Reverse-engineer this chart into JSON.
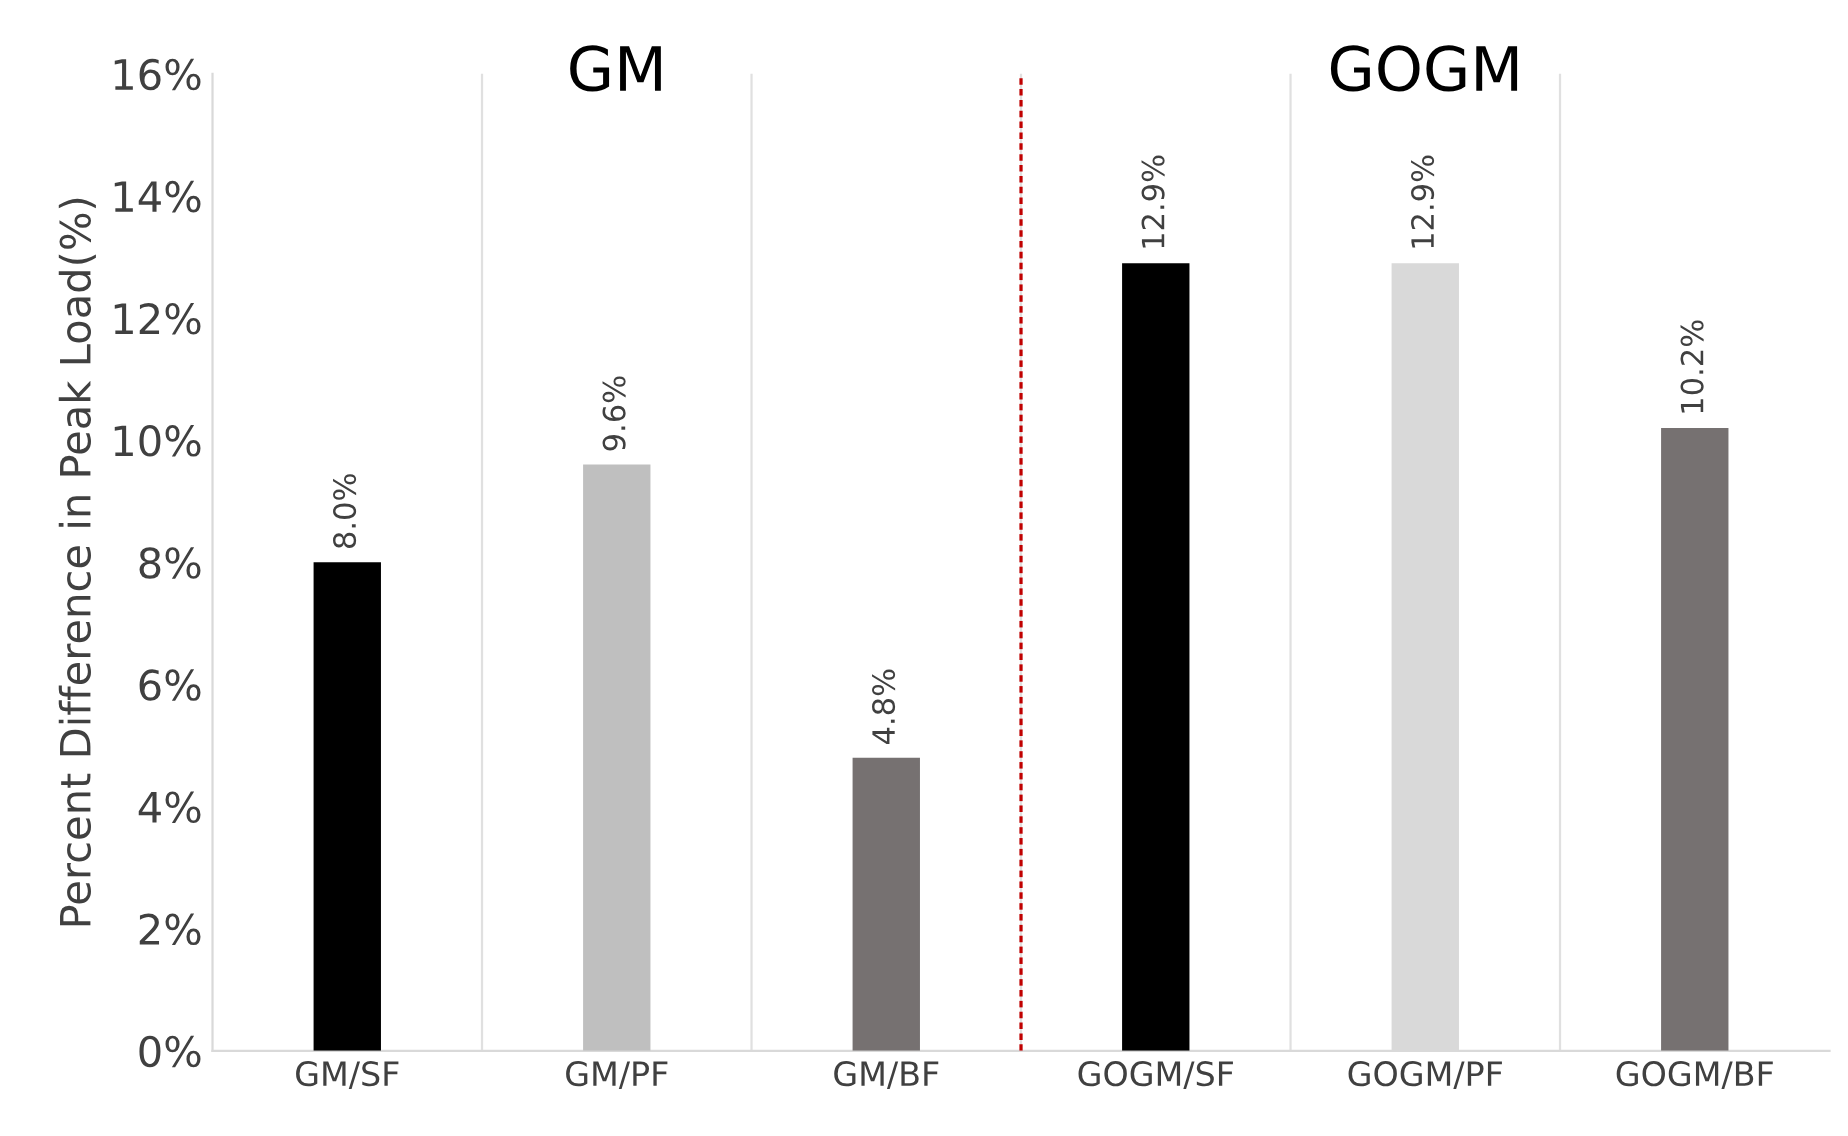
{
  "chart_data": {
    "type": "bar",
    "ylabel": "Percent Difference in Peak Load(%)",
    "categories": [
      "GM/SF",
      "GM/PF",
      "GM/BF",
      "GOGM/SF",
      "GOGM/PF",
      "GOGM/BF"
    ],
    "values": [
      8.0,
      9.6,
      4.8,
      12.9,
      12.9,
      10.2
    ],
    "colors": [
      "#000000",
      "#bfbfbf",
      "#767171",
      "#000000",
      "#d9d9d9",
      "#767171"
    ],
    "value_labels": [
      "8.0%",
      "9.6%",
      "4.8%",
      "12.9%",
      "12.9%",
      "10.2%"
    ],
    "ylim": [
      0,
      16
    ],
    "yticks": [
      {
        "value": 0,
        "label": "0%"
      },
      {
        "value": 2,
        "label": "2%"
      },
      {
        "value": 4,
        "label": "4%"
      },
      {
        "value": 6,
        "label": "6%"
      },
      {
        "value": 8,
        "label": "8%"
      },
      {
        "value": 10,
        "label": "10%"
      },
      {
        "value": 12,
        "label": "12%"
      },
      {
        "value": 14,
        "label": "14%"
      },
      {
        "value": 16,
        "label": "16%"
      }
    ],
    "grid": "x",
    "annotations": [
      "GM",
      "GOGM"
    ]
  }
}
